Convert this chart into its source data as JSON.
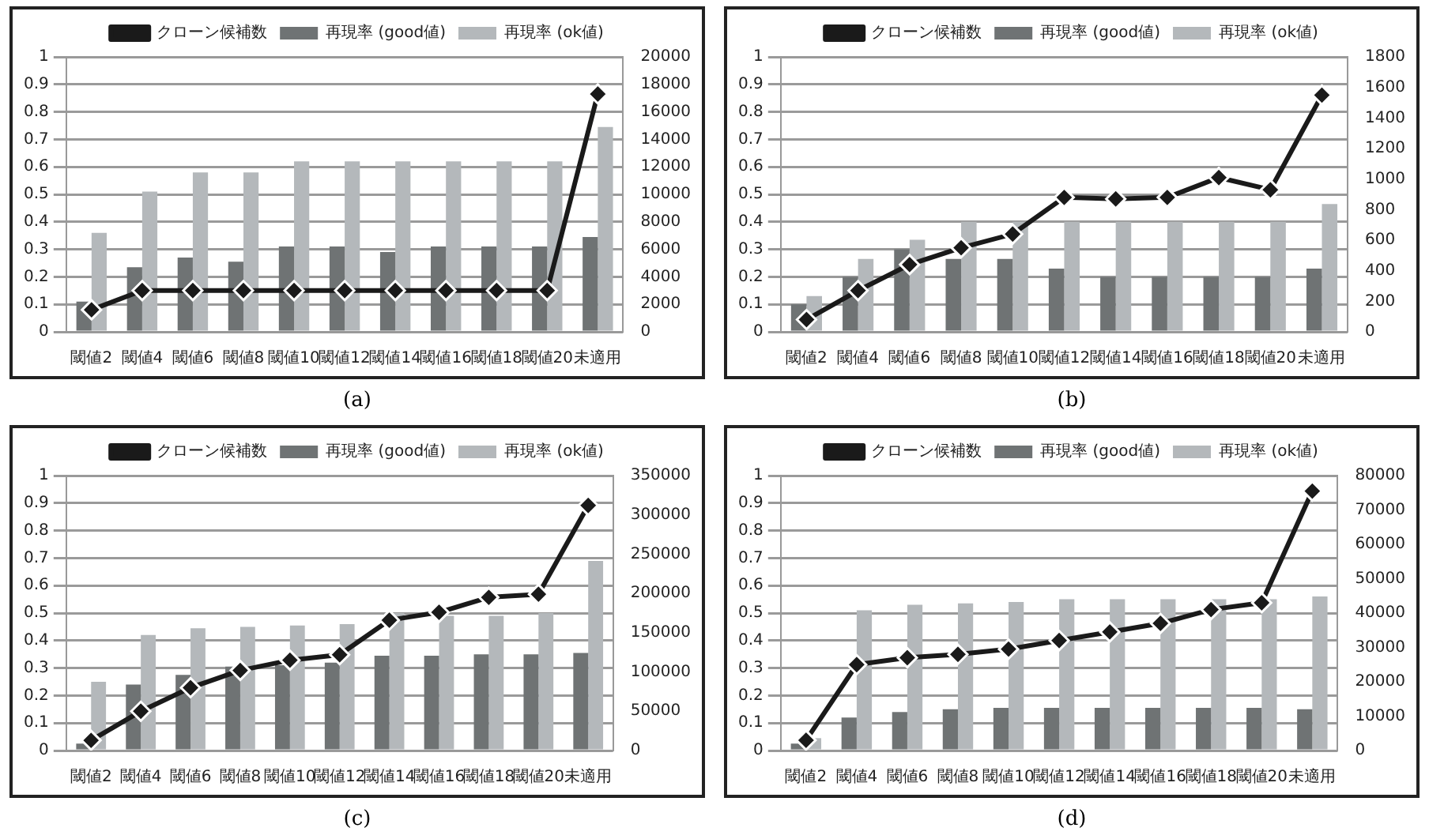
{
  "chart_data": [
    {
      "type": "bar",
      "title": "(a)",
      "categories": [
        "閾値2",
        "閾値4",
        "閾値6",
        "閾値8",
        "閾値10",
        "閾値12",
        "閾値14",
        "閾値16",
        "閾値18",
        "閾値20",
        "未適用"
      ],
      "series": [
        {
          "name": "再現率 (good値)",
          "color": "#6f7374",
          "values": [
            0.11,
            0.235,
            0.27,
            0.255,
            0.31,
            0.31,
            0.29,
            0.31,
            0.31,
            0.31,
            0.345
          ]
        },
        {
          "name": "再現率 (ok値)",
          "color": "#b4b8bb",
          "values": [
            0.36,
            0.51,
            0.58,
            0.58,
            0.62,
            0.62,
            0.62,
            0.62,
            0.62,
            0.62,
            0.745
          ]
        },
        {
          "name": "クローン候補数",
          "color": "#1a1a1a",
          "type": "line",
          "axis": "y2",
          "marker": "diamond",
          "values": [
            1600,
            3000,
            3000,
            3000,
            3000,
            3000,
            3000,
            3000,
            3000,
            3000,
            17300
          ]
        }
      ],
      "ylim": [
        0,
        1
      ],
      "yticks": [
        0,
        0.1,
        0.2,
        0.3,
        0.4,
        0.5,
        0.6,
        0.7,
        0.8,
        0.9,
        1
      ],
      "y2lim": [
        0,
        20000
      ],
      "y2ticks": [
        0,
        2000,
        4000,
        6000,
        8000,
        10000,
        12000,
        14000,
        16000,
        18000,
        20000
      ],
      "grid": "y",
      "legend": "top"
    },
    {
      "type": "bar",
      "title": "(b)",
      "categories": [
        "閾値2",
        "閾値4",
        "閾値6",
        "閾値8",
        "閾値10",
        "閾値12",
        "閾値14",
        "閾値16",
        "閾値18",
        "閾値20",
        "未適用"
      ],
      "series": [
        {
          "name": "再現率 (good値)",
          "color": "#6f7374",
          "values": [
            0.1,
            0.2,
            0.3,
            0.265,
            0.265,
            0.23,
            0.2,
            0.2,
            0.2,
            0.2,
            0.23
          ]
        },
        {
          "name": "再現率 (ok値)",
          "color": "#b4b8bb",
          "values": [
            0.13,
            0.265,
            0.335,
            0.4,
            0.4,
            0.4,
            0.4,
            0.4,
            0.4,
            0.4,
            0.465
          ]
        },
        {
          "name": "クローン候補数",
          "color": "#1a1a1a",
          "type": "line",
          "axis": "y2",
          "marker": "diamond",
          "values": [
            80,
            270,
            440,
            550,
            640,
            880,
            870,
            880,
            1010,
            930,
            1550
          ]
        }
      ],
      "ylim": [
        0,
        1
      ],
      "yticks": [
        0,
        0.1,
        0.2,
        0.3,
        0.4,
        0.5,
        0.6,
        0.7,
        0.8,
        0.9,
        1
      ],
      "y2lim": [
        0,
        1800
      ],
      "y2ticks": [
        0,
        200,
        400,
        600,
        800,
        1000,
        1200,
        1400,
        1600,
        1800
      ],
      "grid": "y",
      "legend": "top"
    },
    {
      "type": "bar",
      "title": "(c)",
      "categories": [
        "閾値2",
        "閾値4",
        "閾値6",
        "閾値8",
        "閾値10",
        "閾値12",
        "閾値14",
        "閾値16",
        "閾値18",
        "閾値20",
        "未適用"
      ],
      "series": [
        {
          "name": "再現率 (good値)",
          "color": "#6f7374",
          "values": [
            0.025,
            0.24,
            0.275,
            0.305,
            0.31,
            0.32,
            0.345,
            0.345,
            0.35,
            0.35,
            0.355
          ]
        },
        {
          "name": "再現率 (ok値)",
          "color": "#b4b8bb",
          "values": [
            0.25,
            0.42,
            0.445,
            0.45,
            0.455,
            0.46,
            0.5,
            0.49,
            0.49,
            0.5,
            0.69
          ]
        },
        {
          "name": "クローン候補数",
          "color": "#1a1a1a",
          "type": "line",
          "axis": "y2",
          "marker": "diamond",
          "values": [
            13000,
            50000,
            80000,
            102000,
            115000,
            122000,
            166000,
            176000,
            195000,
            199000,
            312000
          ]
        }
      ],
      "ylim": [
        0,
        1
      ],
      "yticks": [
        0,
        0.1,
        0.2,
        0.3,
        0.4,
        0.5,
        0.6,
        0.7,
        0.8,
        0.9,
        1
      ],
      "y2lim": [
        0,
        350000
      ],
      "y2ticks": [
        0,
        50000,
        100000,
        150000,
        200000,
        250000,
        300000,
        350000
      ],
      "grid": "y",
      "legend": "top"
    },
    {
      "type": "bar",
      "title": "(d)",
      "categories": [
        "閾値2",
        "閾値4",
        "閾値6",
        "閾値8",
        "閾値10",
        "閾値12",
        "閾値14",
        "閾値16",
        "閾値18",
        "閾値20",
        "未適用"
      ],
      "series": [
        {
          "name": "再現率 (good値)",
          "color": "#6f7374",
          "values": [
            0.025,
            0.12,
            0.14,
            0.15,
            0.155,
            0.155,
            0.155,
            0.155,
            0.155,
            0.155,
            0.15
          ]
        },
        {
          "name": "再現率 (ok値)",
          "color": "#b4b8bb",
          "values": [
            0.045,
            0.51,
            0.53,
            0.535,
            0.54,
            0.55,
            0.55,
            0.55,
            0.55,
            0.55,
            0.56
          ]
        },
        {
          "name": "クローン候補数",
          "color": "#1a1a1a",
          "type": "line",
          "axis": "y2",
          "marker": "diamond",
          "values": [
            3000,
            25000,
            27000,
            28000,
            29500,
            32000,
            34500,
            37000,
            41000,
            43000,
            75500
          ]
        }
      ],
      "ylim": [
        0,
        1
      ],
      "yticks": [
        0,
        0.1,
        0.2,
        0.3,
        0.4,
        0.5,
        0.6,
        0.7,
        0.8,
        0.9,
        1
      ],
      "y2lim": [
        0,
        80000
      ],
      "y2ticks": [
        0,
        10000,
        20000,
        30000,
        40000,
        50000,
        60000,
        70000,
        80000
      ],
      "grid": "y",
      "legend": "top"
    }
  ]
}
